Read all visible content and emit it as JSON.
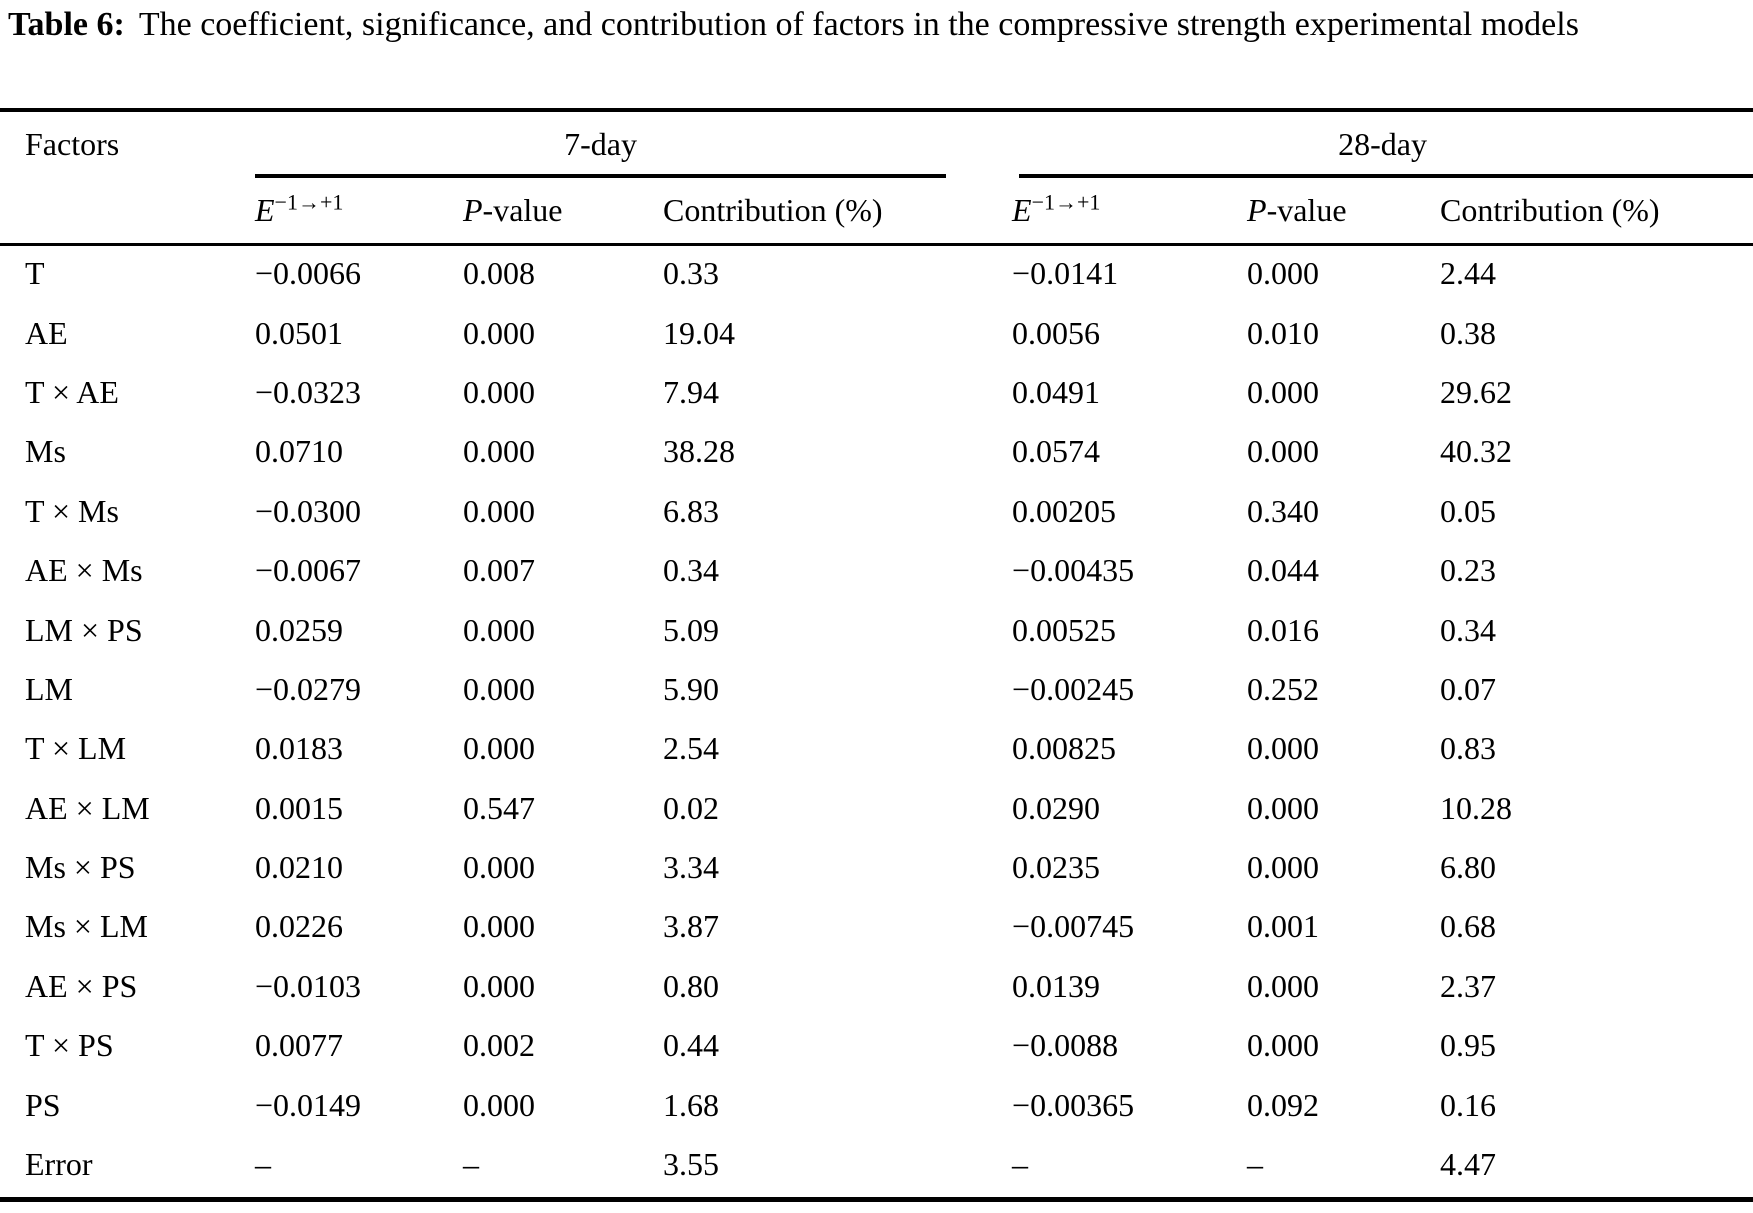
{
  "title": {
    "label": "Table 6:",
    "text": "The coefficient, significance, and contribution of factors in the compressive strength experimental models"
  },
  "table": {
    "factors_header": "Factors",
    "groups": [
      {
        "label": "7-day"
      },
      {
        "label": "28-day"
      }
    ],
    "subheaders": {
      "effect_base": "E",
      "effect_sup": "−1→+1",
      "p_italic": "P",
      "p_rest": "-value",
      "contribution": "Contribution (%)"
    },
    "rows": [
      {
        "factor": "T",
        "d7": [
          "−0.0066",
          "0.008",
          "0.33"
        ],
        "d28": [
          "−0.0141",
          "0.000",
          "2.44"
        ]
      },
      {
        "factor": "AE",
        "d7": [
          "0.0501",
          "0.000",
          "19.04"
        ],
        "d28": [
          "0.0056",
          "0.010",
          "0.38"
        ]
      },
      {
        "factor": "T × AE",
        "d7": [
          "−0.0323",
          "0.000",
          "7.94"
        ],
        "d28": [
          "0.0491",
          "0.000",
          "29.62"
        ]
      },
      {
        "factor": "Ms",
        "d7": [
          "0.0710",
          "0.000",
          "38.28"
        ],
        "d28": [
          "0.0574",
          "0.000",
          "40.32"
        ]
      },
      {
        "factor": "T × Ms",
        "d7": [
          "−0.0300",
          "0.000",
          "6.83"
        ],
        "d28": [
          "0.00205",
          "0.340",
          "0.05"
        ]
      },
      {
        "factor": "AE × Ms",
        "d7": [
          "−0.0067",
          "0.007",
          "0.34"
        ],
        "d28": [
          "−0.00435",
          "0.044",
          "0.23"
        ]
      },
      {
        "factor": "LM × PS",
        "d7": [
          "0.0259",
          "0.000",
          "5.09"
        ],
        "d28": [
          "0.00525",
          "0.016",
          "0.34"
        ]
      },
      {
        "factor": "LM",
        "d7": [
          "−0.0279",
          "0.000",
          "5.90"
        ],
        "d28": [
          "−0.00245",
          "0.252",
          "0.07"
        ]
      },
      {
        "factor": "T × LM",
        "d7": [
          "0.0183",
          "0.000",
          "2.54"
        ],
        "d28": [
          "0.00825",
          "0.000",
          "0.83"
        ]
      },
      {
        "factor": "AE × LM",
        "d7": [
          "0.0015",
          "0.547",
          "0.02"
        ],
        "d28": [
          "0.0290",
          "0.000",
          "10.28"
        ]
      },
      {
        "factor": "Ms × PS",
        "d7": [
          "0.0210",
          "0.000",
          "3.34"
        ],
        "d28": [
          "0.0235",
          "0.000",
          "6.80"
        ]
      },
      {
        "factor": "Ms × LM",
        "d7": [
          "0.0226",
          "0.000",
          "3.87"
        ],
        "d28": [
          "−0.00745",
          "0.001",
          "0.68"
        ]
      },
      {
        "factor": "AE × PS",
        "d7": [
          "−0.0103",
          "0.000",
          "0.80"
        ],
        "d28": [
          "0.0139",
          "0.000",
          "2.37"
        ]
      },
      {
        "factor": "T × PS",
        "d7": [
          "0.0077",
          "0.002",
          "0.44"
        ],
        "d28": [
          "−0.0088",
          "0.000",
          "0.95"
        ]
      },
      {
        "factor": "PS",
        "d7": [
          "−0.0149",
          "0.000",
          "1.68"
        ],
        "d28": [
          "−0.00365",
          "0.092",
          "0.16"
        ]
      },
      {
        "factor": "Error",
        "d7": [
          "–",
          "–",
          "3.55"
        ],
        "d28": [
          "–",
          "–",
          "4.47"
        ]
      }
    ]
  }
}
